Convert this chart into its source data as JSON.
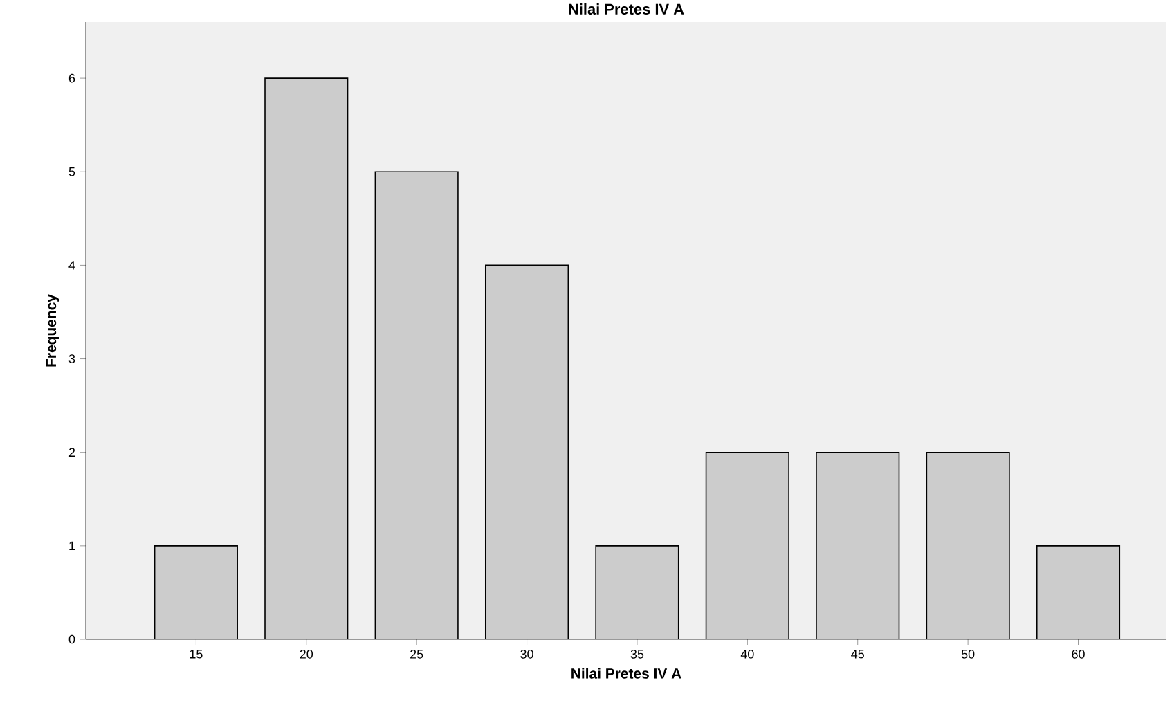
{
  "chart_data": {
    "type": "bar",
    "title": "Nilai Pretes IV A",
    "xlabel": "Nilai Pretes IV A",
    "ylabel": "Frequency",
    "categories": [
      "15",
      "20",
      "25",
      "30",
      "35",
      "40",
      "45",
      "50",
      "60"
    ],
    "values": [
      1,
      6,
      5,
      4,
      1,
      2,
      2,
      2,
      1
    ],
    "color": "#cccccc",
    "ylim": [
      0,
      6.6
    ],
    "yticks": [
      0,
      1,
      2,
      3,
      4,
      5,
      6
    ]
  }
}
